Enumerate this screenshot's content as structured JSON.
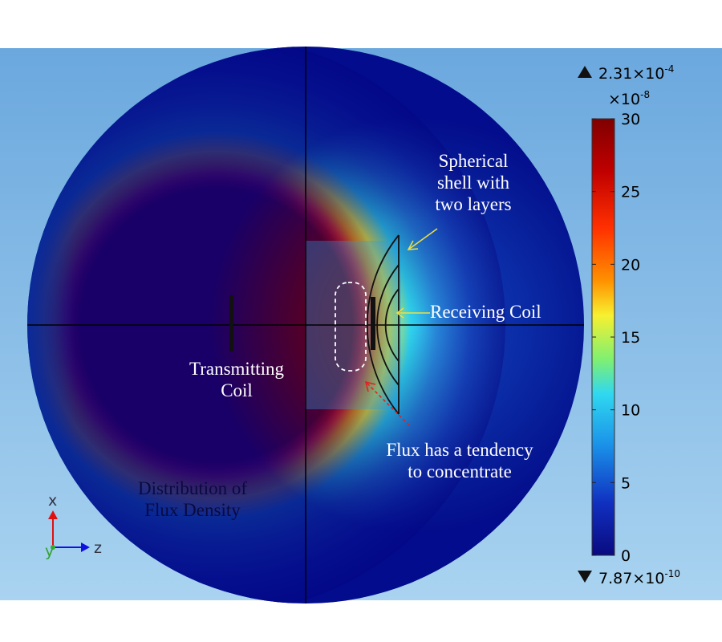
{
  "annotations": {
    "spherical_shell": [
      "Spherical",
      "shell with",
      "two layers"
    ],
    "receiving_coil": "Receiving Coil",
    "transmitting_coil": [
      "Transmitting",
      "Coil"
    ],
    "flux_tendency": [
      "Flux has a tendency",
      "to concentrate"
    ],
    "distribution": [
      "Distribution of",
      "Flux Density"
    ]
  },
  "axes_triad": {
    "vertical": "x",
    "horizontal": "z",
    "out_of_plane": "y"
  },
  "colorbar": {
    "max_marker": "2.31×10",
    "max_exp": "-4",
    "multiplier": "×10",
    "multiplier_exp": "-8",
    "min_marker": "7.87×10",
    "min_exp": "-10",
    "ticks": [
      "30",
      "25",
      "20",
      "15",
      "10",
      "5",
      "0"
    ],
    "tick_values": [
      30,
      25,
      20,
      15,
      10,
      5,
      0
    ],
    "range": [
      0,
      30
    ]
  },
  "colors": {
    "hot": "#800000",
    "red": "#e01818",
    "orange": "#ff8c00",
    "yellow": "#f5f530",
    "cyan": "#30d8f0",
    "blue": "#1a6ad0",
    "deep_blue": "#0a0a8c"
  }
}
